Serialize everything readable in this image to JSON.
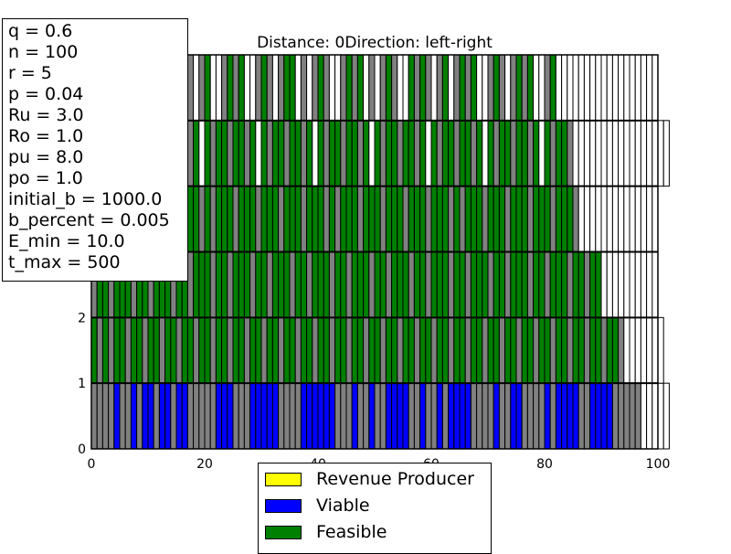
{
  "chart_data": {
    "type": "bar",
    "title": "Distance: 0Direction: left-right",
    "xlabel": "",
    "ylabel": "",
    "xlim": [
      0,
      100
    ],
    "ylim": [
      0,
      6
    ],
    "x_ticks": [
      "0",
      "20",
      "40",
      "60",
      "80",
      "100"
    ],
    "y_ticks": [
      "0",
      "1",
      "2"
    ],
    "grid": false,
    "legend_position": "bottom-center",
    "series_colors": {
      "Revenue Producer": "#ffff00",
      "Viable": "#0000ff",
      "Feasible": "#008000",
      "other": "#808080",
      "empty": "#ffffff"
    },
    "legend": [
      {
        "label": "Revenue Producer",
        "color": "#ffff00"
      },
      {
        "label": "Viable",
        "color": "#0000ff"
      },
      {
        "label": "Feasible",
        "color": "#008000"
      }
    ],
    "layers": [
      {
        "level": 0,
        "cells": "GGGGBGGBGBBGBBGBBGGGGGBBBGGGBBBBBGGGGBBBBBBGGGBGGBGGBBBBGGBGGBGBBBBGGGGBGGBBGGGGBGBBBBGGBBBBGGGGGWWWWW"
      },
      {
        "level": 1,
        "cells": "FGFGFFGFFGFFGFFGFFGFFGFFGFFGFFGFFGFFGFFGFFGFFGFFGFFGFFGFFGFFGFFGFFGFFGFFGFFGFFGFFGFFGFFGFFGFFGWWWWWWW"
      },
      {
        "level": 2,
        "cells": "GFFGFFFGFFGFFFGFFGFFFGFFGFFFGFFGFFFGFFGFFFGFFGFFFGFFGFFFGFFGFFFGFFGFFFGFFGFFFGFFGFFFGFFGFFWWWWWWWWW"
      },
      {
        "level": 3,
        "cells": "FFFGFFFGFFFGFFFGFFFGFGFFFGFFFGFFFGFFFGFFFGFGFFFGFFFGFFFGFFFGFFFGFGFFFGFFFGFFFGFFFGFFFGWWWWWWWWWWWWWW"
      },
      {
        "level": 4,
        "cells": "FGFFGFFGFWFGFFGFFGFWFGFFGFFGFWFGFFGFFGFWFGFFGFFGFWFGFFGFFGFWFGFFGFFGFWFGFFGFFGFWFGFFGWWWWWWWWWWWWWWWWW"
      },
      {
        "level": 5,
        "cells": "GFWGFGWWFGWGFWWGFGWGFWWGFGFWWGFGWGFFWGWGFGWWGFGFWGWGFGWWFGFGWGFWGFGFWWGFGWGFGFWWGFWWWWWWWWWWWWWWWWWW"
      }
    ]
  },
  "params_box": {
    "lines": [
      "q = 0.6",
      "n = 100",
      "r = 5",
      "p = 0.04",
      "Ru = 3.0",
      "Ro = 1.0",
      "pu = 8.0",
      "po = 1.0",
      "initial_b = 1000.0",
      "b_percent = 0.005",
      "E_min = 10.0",
      "t_max = 500"
    ]
  }
}
